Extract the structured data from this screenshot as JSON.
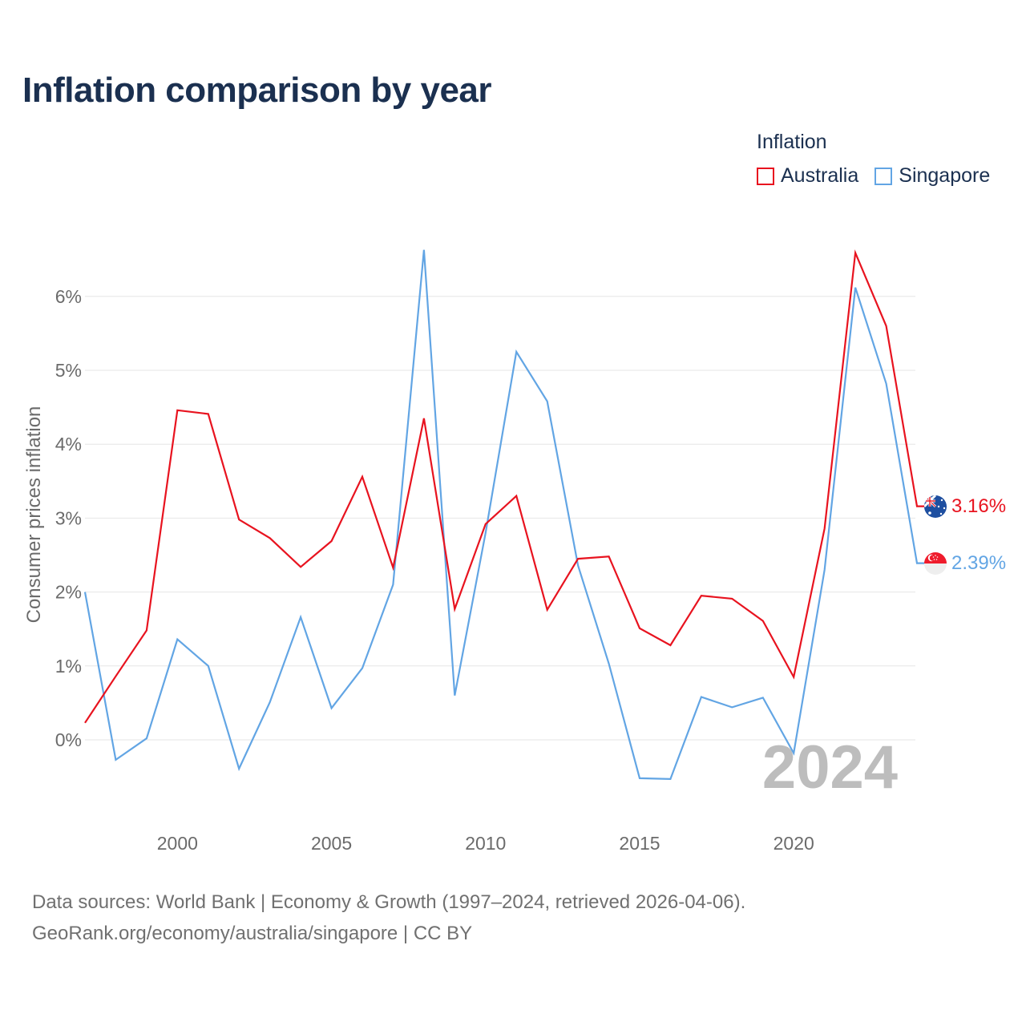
{
  "title": "Inflation comparison by year",
  "legend": {
    "title": "Inflation",
    "items": [
      {
        "label": "Australia",
        "color": "#e8131f"
      },
      {
        "label": "Singapore",
        "color": "#62a5e4"
      }
    ]
  },
  "footer": {
    "line1": "Data sources: World Bank | Economy & Growth (1997–2024, retrieved 2026-04-06).",
    "line2": "GeoRank.org/economy/australia/singapore | CC BY"
  },
  "chart_data": {
    "type": "line",
    "title": "Inflation comparison by year",
    "xlabel": "",
    "ylabel": "Consumer prices inflation",
    "xlim": [
      1997,
      2024
    ],
    "ylim": [
      -1,
      7
    ],
    "x_ticks": [
      2000,
      2005,
      2010,
      2015,
      2020
    ],
    "y_ticks": [
      0,
      1,
      2,
      3,
      4,
      5,
      6
    ],
    "y_tick_labels": [
      "0%",
      "1%",
      "2%",
      "3%",
      "4%",
      "5%",
      "6%"
    ],
    "grid": true,
    "year_watermark": "2024",
    "x": [
      1997,
      1998,
      1999,
      2000,
      2001,
      2002,
      2003,
      2004,
      2005,
      2006,
      2007,
      2008,
      2009,
      2010,
      2011,
      2012,
      2013,
      2014,
      2015,
      2016,
      2017,
      2018,
      2019,
      2020,
      2021,
      2022,
      2023,
      2024
    ],
    "series": [
      {
        "name": "Australia",
        "color": "#e8131f",
        "end_label": "3.16%",
        "values": [
          0.23,
          0.86,
          1.48,
          4.46,
          4.41,
          2.98,
          2.73,
          2.34,
          2.69,
          3.56,
          2.33,
          4.35,
          1.77,
          2.92,
          3.3,
          1.76,
          2.45,
          2.48,
          1.51,
          1.28,
          1.95,
          1.91,
          1.61,
          0.85,
          2.86,
          6.59,
          5.6,
          3.16
        ]
      },
      {
        "name": "Singapore",
        "color": "#62a5e4",
        "end_label": "2.39%",
        "values": [
          2.0,
          -0.27,
          0.02,
          1.36,
          1.0,
          -0.39,
          0.51,
          1.66,
          0.43,
          0.97,
          2.1,
          6.63,
          0.6,
          2.8,
          5.25,
          4.58,
          2.36,
          1.03,
          -0.52,
          -0.53,
          0.58,
          0.44,
          0.57,
          -0.18,
          2.3,
          6.12,
          4.82,
          2.39
        ]
      }
    ]
  }
}
